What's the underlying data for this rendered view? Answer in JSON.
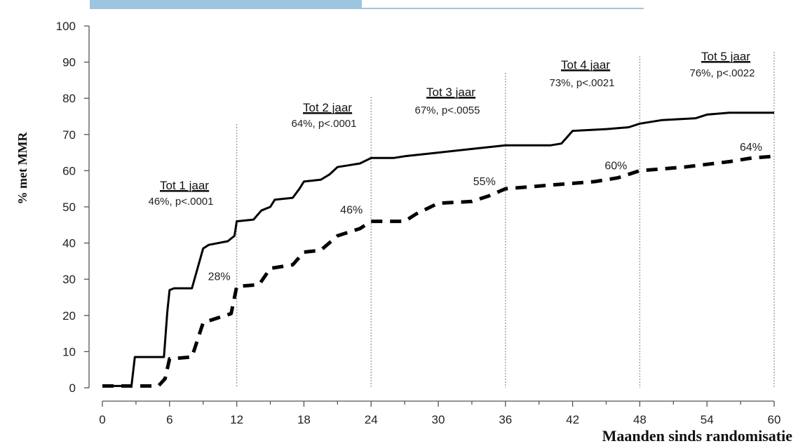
{
  "chart_data": {
    "type": "line",
    "title": "",
    "xlabel": "Maanden sinds randomisatie",
    "ylabel": "% met MMR",
    "xlim": [
      0,
      60
    ],
    "ylim": [
      0,
      100
    ],
    "x_ticks": [
      0,
      6,
      12,
      18,
      24,
      30,
      36,
      42,
      48,
      54,
      60
    ],
    "y_ticks": [
      0,
      10,
      20,
      30,
      40,
      50,
      60,
      70,
      80,
      90,
      100
    ],
    "grid": false,
    "colors": {
      "solid": "#000000",
      "dashed": "#000000",
      "reference_lines": "#9a9a9a",
      "banner": "#9ec5e0"
    },
    "reference_lines_x": [
      12,
      24,
      36,
      48,
      60
    ],
    "series": [
      {
        "style": "solid",
        "points": [
          [
            0,
            0.5
          ],
          [
            2.6,
            0.5
          ],
          [
            2.9,
            8.5
          ],
          [
            5.5,
            8.5
          ],
          [
            5.8,
            21
          ],
          [
            6.0,
            27
          ],
          [
            6.4,
            27.5
          ],
          [
            8.0,
            27.5
          ],
          [
            8.5,
            33
          ],
          [
            9.0,
            38.5
          ],
          [
            9.5,
            39.5
          ],
          [
            11.2,
            40.5
          ],
          [
            11.8,
            42
          ],
          [
            12.0,
            46
          ],
          [
            13.5,
            46.5
          ],
          [
            14.2,
            49
          ],
          [
            15.0,
            50
          ],
          [
            15.4,
            52
          ],
          [
            17.0,
            52.5
          ],
          [
            17.6,
            55
          ],
          [
            18.0,
            57
          ],
          [
            19.5,
            57.5
          ],
          [
            20.3,
            59
          ],
          [
            21.0,
            61
          ],
          [
            22.0,
            61.5
          ],
          [
            23.0,
            62
          ],
          [
            24.0,
            63.5
          ],
          [
            26.0,
            63.5
          ],
          [
            27.0,
            64
          ],
          [
            30.0,
            65
          ],
          [
            33.0,
            66
          ],
          [
            36.0,
            67
          ],
          [
            40.0,
            67
          ],
          [
            41.0,
            67.5
          ],
          [
            42.0,
            71
          ],
          [
            45.0,
            71.5
          ],
          [
            47.0,
            72
          ],
          [
            48.0,
            73
          ],
          [
            50.0,
            74
          ],
          [
            53.0,
            74.5
          ],
          [
            54.0,
            75.5
          ],
          [
            56.0,
            76
          ],
          [
            60.0,
            76
          ]
        ]
      },
      {
        "style": "dashed",
        "points": [
          [
            0,
            0.5
          ],
          [
            5.0,
            0.5
          ],
          [
            5.6,
            2.5
          ],
          [
            6.0,
            8
          ],
          [
            8.0,
            8.5
          ],
          [
            9.0,
            18
          ],
          [
            11.5,
            20.5
          ],
          [
            12.0,
            28
          ],
          [
            14.0,
            28.5
          ],
          [
            15.0,
            33
          ],
          [
            17.0,
            34
          ],
          [
            18.0,
            37.5
          ],
          [
            19.5,
            38
          ],
          [
            21.0,
            42
          ],
          [
            23.0,
            44
          ],
          [
            24.0,
            46
          ],
          [
            27.0,
            46
          ],
          [
            28.0,
            48
          ],
          [
            30.0,
            51
          ],
          [
            33.0,
            51.5
          ],
          [
            34.5,
            53
          ],
          [
            36.0,
            55
          ],
          [
            40.0,
            56
          ],
          [
            44.0,
            57
          ],
          [
            46.0,
            58
          ],
          [
            48.0,
            60
          ],
          [
            52.0,
            61
          ],
          [
            56.0,
            62.5
          ],
          [
            58.0,
            63.5
          ],
          [
            60.0,
            64
          ]
        ]
      }
    ],
    "annotations": [
      {
        "title": "Tot 1 jaar",
        "subtitle": "46%, p<.0001"
      },
      {
        "title": "Tot 2 jaar",
        "subtitle": "64%, p<.0001"
      },
      {
        "title": "Tot 3 jaar",
        "subtitle": "67%, p<.0055"
      },
      {
        "title": "Tot 4 jaar",
        "subtitle": "73%, p<.0021"
      },
      {
        "title": "Tot 5 jaar",
        "subtitle": "76%, p<.0022"
      }
    ],
    "dashed_labels": [
      {
        "text": "28%",
        "x": 12,
        "y": 28
      },
      {
        "text": "46%",
        "x": 24,
        "y": 46
      },
      {
        "text": "55%",
        "x": 36,
        "y": 55
      },
      {
        "text": "60%",
        "x": 48,
        "y": 60
      },
      {
        "text": "64%",
        "x": 60,
        "y": 64
      }
    ]
  }
}
